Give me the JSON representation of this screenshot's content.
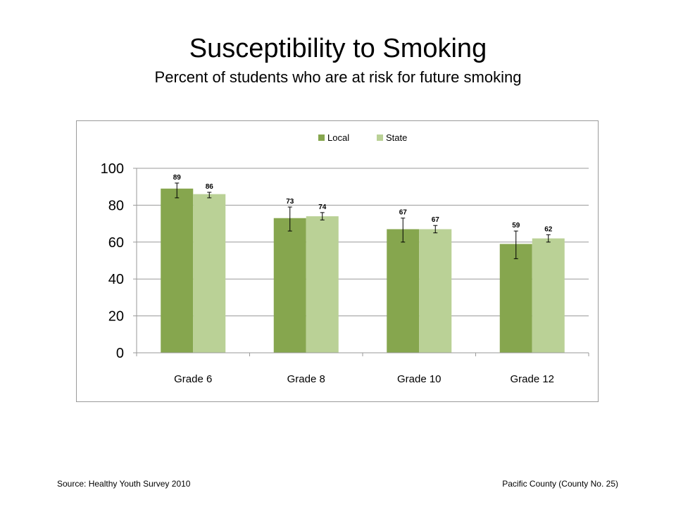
{
  "title": "Susceptibility to Smoking",
  "subtitle": "Percent of students who are at risk for future smoking",
  "footer": {
    "source": "Source: Healthy Youth Survey 2010",
    "county": "Pacific County (County No. 25)"
  },
  "colors": {
    "local": "#86a64e",
    "state": "#bad196",
    "grid": "#9a9a9a"
  },
  "chart_data": {
    "type": "bar",
    "title": "",
    "xlabel": "",
    "ylabel": "",
    "categories": [
      "Grade 6",
      "Grade 8",
      "Grade 10",
      "Grade 12"
    ],
    "series": [
      {
        "name": "Local",
        "values": [
          89,
          73,
          67,
          59
        ],
        "value_labels": [
          "89",
          "73",
          "67",
          "59"
        ],
        "error_low": [
          84,
          66,
          60,
          51
        ],
        "error_high": [
          92,
          79,
          73,
          66
        ]
      },
      {
        "name": "State",
        "values": [
          86,
          74,
          67,
          62
        ],
        "value_labels": [
          "86",
          "74",
          "67",
          "62"
        ],
        "error_low": [
          84,
          72,
          65,
          60
        ],
        "error_high": [
          87,
          76,
          69,
          64
        ]
      }
    ],
    "ylim": [
      0,
      100
    ],
    "yticks": [
      0,
      20,
      40,
      60,
      80,
      100
    ],
    "ytick_labels": [
      "0",
      "20",
      "40",
      "60",
      "80",
      "100"
    ],
    "grid": true,
    "legend": "top-center",
    "error_bars": true
  }
}
